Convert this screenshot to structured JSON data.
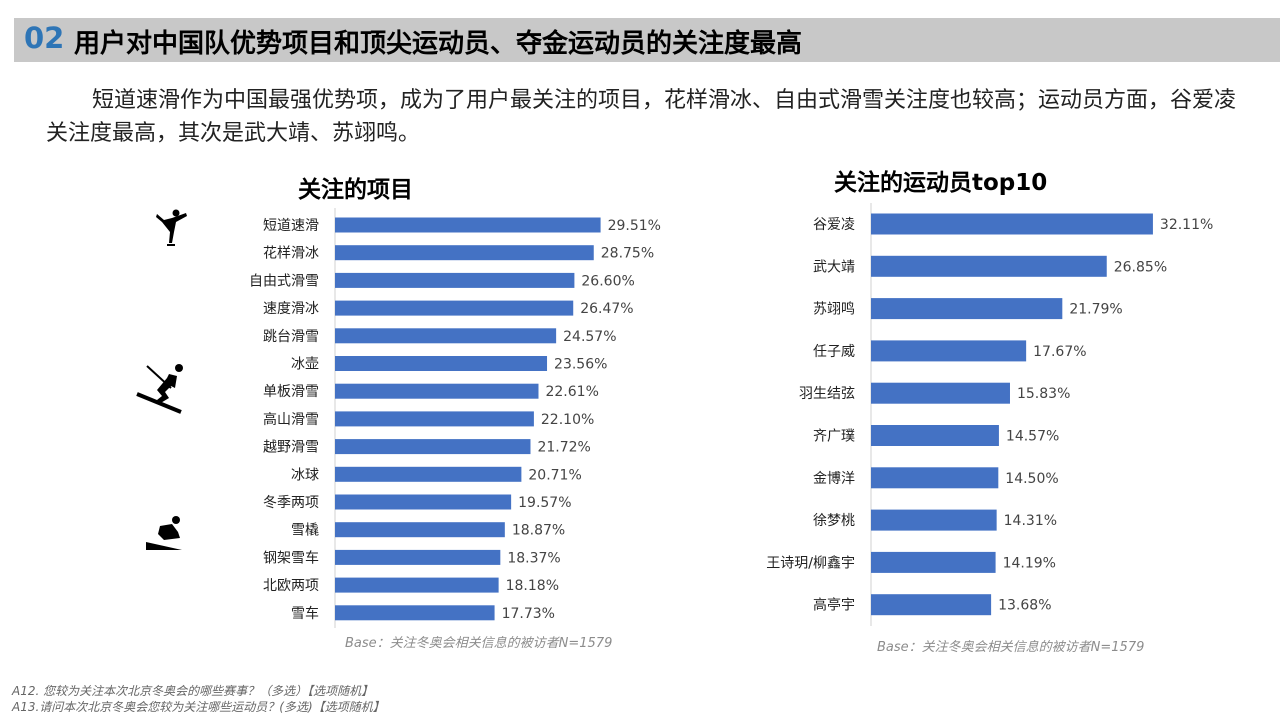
{
  "header": {
    "number": "02",
    "title": "用户对中国队优势项目和顶尖运动员、夺金运动员的关注度最高"
  },
  "intro": "短道速滑作为中国最强优势项，成为了用户最关注的项目，花样滑冰、自由式滑雪关注度也较高；运动员方面，谷爱凌关注度最高，其次是武大靖、苏翊鸣。",
  "colors": {
    "bar": "#4472c4",
    "accent": "#2e75b6"
  },
  "icons": [
    "figure-skating-icon",
    "skiing-icon",
    "sled-icon"
  ],
  "chart_data": [
    {
      "type": "bar",
      "orientation": "horizontal",
      "title": "关注的项目",
      "categories": [
        "短道速滑",
        "花样滑冰",
        "自由式滑雪",
        "速度滑冰",
        "跳台滑雪",
        "冰壶",
        "单板滑雪",
        "高山滑雪",
        "越野滑雪",
        "冰球",
        "冬季两项",
        "雪橇",
        "钢架雪车",
        "北欧两项",
        "雪车"
      ],
      "values": [
        29.51,
        28.75,
        26.6,
        26.47,
        24.57,
        23.56,
        22.61,
        22.1,
        21.72,
        20.71,
        19.57,
        18.87,
        18.37,
        18.18,
        17.73
      ],
      "labels": [
        "29.51%",
        "28.75%",
        "26.60%",
        "26.47%",
        "24.57%",
        "23.56%",
        "22.61%",
        "22.10%",
        "21.72%",
        "20.71%",
        "19.57%",
        "18.87%",
        "18.37%",
        "18.18%",
        "17.73%"
      ],
      "note": "Base：关注冬奥会相关信息的被访者N=1579"
    },
    {
      "type": "bar",
      "orientation": "horizontal",
      "title": "关注的运动员top10",
      "categories": [
        "谷爱凌",
        "武大靖",
        "苏翊鸣",
        "任子威",
        "羽生结弦",
        "齐广璞",
        "金博洋",
        "徐梦桃",
        "王诗玥/柳鑫宇",
        "高亭宇"
      ],
      "values": [
        32.11,
        26.85,
        21.79,
        17.67,
        15.83,
        14.57,
        14.5,
        14.31,
        14.19,
        13.68
      ],
      "labels": [
        "32.11%",
        "26.85%",
        "21.79%",
        "17.67%",
        "15.83%",
        "14.57%",
        "14.50%",
        "14.31%",
        "14.19%",
        "13.68%"
      ],
      "note": "Base：关注冬奥会相关信息的被访者N=1579"
    }
  ],
  "footnotes": [
    "A12. 您较为关注本次北京冬奥会的哪些赛事？（多选）【选项随机】",
    "A13.请问本次北京冬奥会您较为关注哪些运动员？(多选)【选项随机】"
  ]
}
